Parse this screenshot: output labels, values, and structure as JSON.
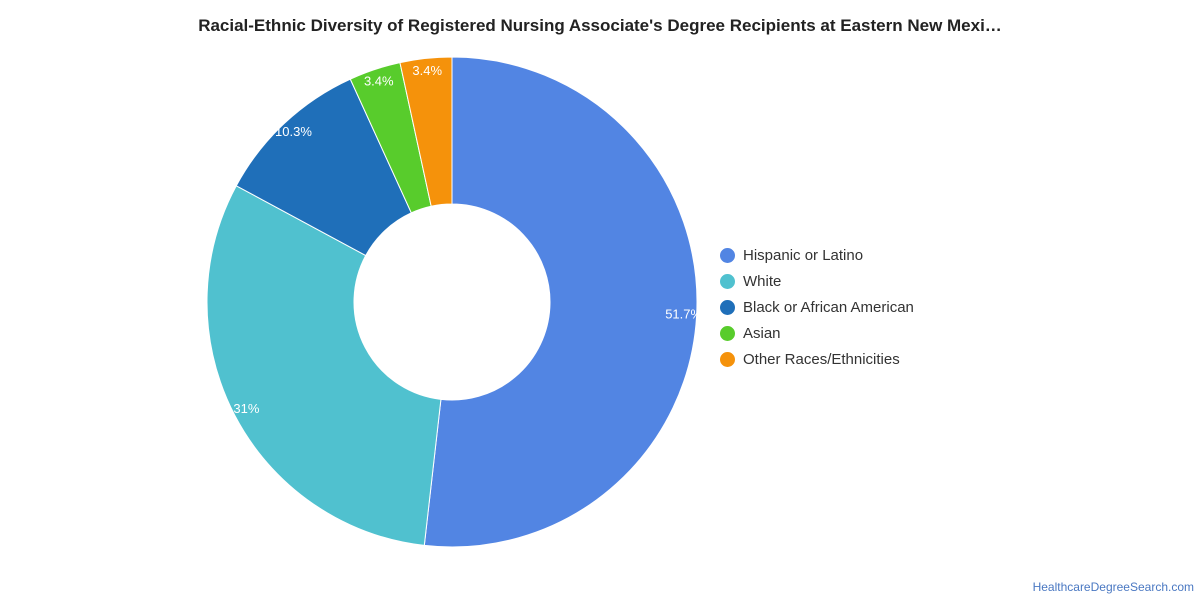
{
  "chart_data": {
    "type": "pie",
    "variant": "donut",
    "title": "Racial-Ethnic Diversity of Registered Nursing Associate's Degree Recipients at Eastern New Mexi…",
    "categories": [
      "Hispanic or Latino",
      "White",
      "Black or African American",
      "Asian",
      "Other Races/Ethnicities"
    ],
    "values": [
      51.7,
      31,
      10.3,
      3.4,
      3.4
    ],
    "labels": [
      "51.7%",
      "31%",
      "10.3%",
      "3.4%",
      "3.4%"
    ],
    "colors": [
      "#5285e3",
      "#50c1cf",
      "#1f6fb9",
      "#58cc2c",
      "#f5920b"
    ],
    "legend_position": "right"
  },
  "watermark": "HealthcareDegreeSearch.com"
}
